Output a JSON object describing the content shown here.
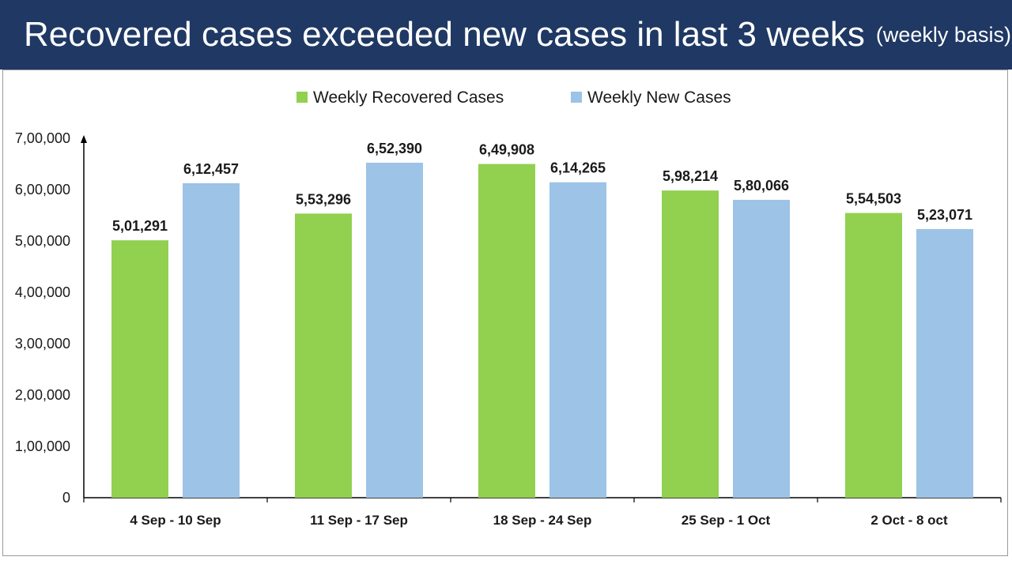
{
  "header": {
    "title": "Recovered cases exceeded new cases in last 3 weeks",
    "subtitle": "(weekly basis)"
  },
  "chart_data": {
    "type": "bar",
    "title": "Recovered cases exceeded new cases in last 3 weeks",
    "subtitle": "(weekly basis)",
    "xlabel": "",
    "ylabel": "",
    "ylim": [
      0,
      700000
    ],
    "yticks": [
      0,
      100000,
      200000,
      300000,
      400000,
      500000,
      600000,
      700000
    ],
    "ytick_labels": [
      "0",
      "1,00,000",
      "2,00,000",
      "3,00,000",
      "4,00,000",
      "5,00,000",
      "6,00,000",
      "7,00,000"
    ],
    "grid": false,
    "legend": "top-center",
    "categories": [
      "4 Sep - 10 Sep",
      "11 Sep - 17 Sep",
      "18 Sep - 24 Sep",
      "25 Sep - 1 Oct",
      "2 Oct - 8 oct"
    ],
    "series": [
      {
        "name": "Weekly Recovered Cases",
        "color": "#92d050",
        "values": [
          501291,
          553296,
          649908,
          598214,
          554503
        ],
        "labels": [
          "5,01,291",
          "5,53,296",
          "6,49,908",
          "5,98,214",
          "5,54,503"
        ]
      },
      {
        "name": "Weekly New Cases",
        "color": "#9dc3e6",
        "values": [
          612457,
          652390,
          614265,
          580066,
          523071
        ],
        "labels": [
          "6,12,457",
          "6,52,390",
          "6,14,265",
          "5,80,066",
          "5,23,071"
        ]
      }
    ]
  }
}
